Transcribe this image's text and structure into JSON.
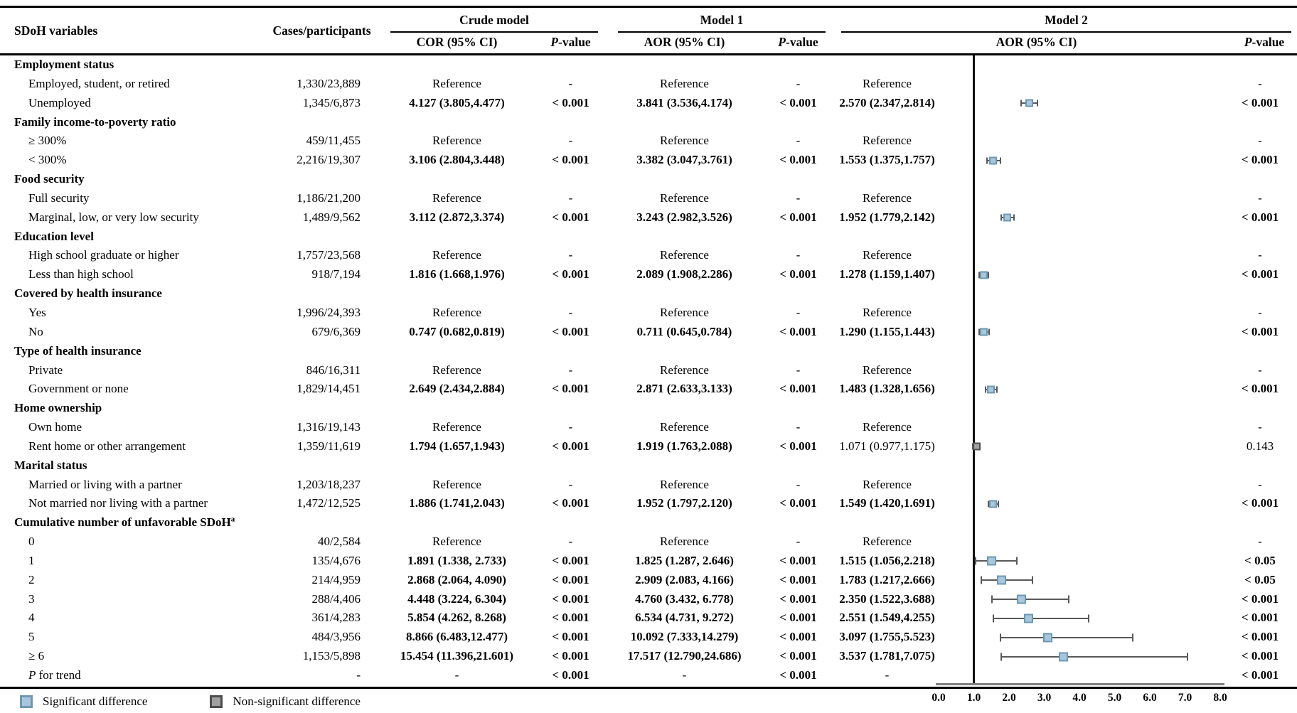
{
  "table": {
    "header": {
      "sdoh_col": "SDoH variables",
      "cases_col": "Cases/participants",
      "crude_model": "Crude model",
      "model1": "Model 1",
      "model2": "Model 2",
      "cor_ci": "COR (95% CI)",
      "aor1_ci": "AOR (95% CI)",
      "aor2_ci": "AOR (95% CI)",
      "p_italic": "P",
      "p_rest": "-value"
    },
    "rows": [
      {
        "t": "g",
        "label": "Employment status"
      },
      {
        "t": "d",
        "label": "Employed, student, or retired",
        "cases": "1,330/23,889",
        "cor": "Reference",
        "corp": "-",
        "aor1": "Reference",
        "aor1p": "-",
        "aor2": "Reference",
        "aor2p": "-"
      },
      {
        "t": "d",
        "label": "Unemployed",
        "cases": "1,345/6,873",
        "cor": "4.127 (3.805,4.477)",
        "corp": "< 0.001",
        "aor1": "3.841 (3.536,4.174)",
        "aor1p": "< 0.001",
        "aor2": "2.570 (2.347,2.814)",
        "aor2p": "< 0.001",
        "est": 2.57,
        "lo": 2.347,
        "hi": 2.814
      },
      {
        "t": "g",
        "label": "Family income-to-poverty ratio"
      },
      {
        "t": "d",
        "label": "≥ 300%",
        "cases": "459/11,455",
        "cor": "Reference",
        "corp": "-",
        "aor1": "Reference",
        "aor1p": "-",
        "aor2": "Reference",
        "aor2p": "-"
      },
      {
        "t": "d",
        "label": "< 300%",
        "cases": "2,216/19,307",
        "cor": "3.106 (2.804,3.448)",
        "corp": "< 0.001",
        "aor1": "3.382 (3.047,3.761)",
        "aor1p": "< 0.001",
        "aor2": "1.553 (1.375,1.757)",
        "aor2p": "< 0.001",
        "est": 1.553,
        "lo": 1.375,
        "hi": 1.757
      },
      {
        "t": "g",
        "label": "Food security"
      },
      {
        "t": "d",
        "label": "Full security",
        "cases": "1,186/21,200",
        "cor": "Reference",
        "corp": "-",
        "aor1": "Reference",
        "aor1p": "-",
        "aor2": "Reference",
        "aor2p": "-"
      },
      {
        "t": "d",
        "label": "Marginal, low, or very low security",
        "cases": "1,489/9,562",
        "cor": "3.112 (2.872,3.374)",
        "corp": "< 0.001",
        "aor1": "3.243 (2.982,3.526)",
        "aor1p": "< 0.001",
        "aor2": "1.952 (1.779,2.142)",
        "aor2p": "< 0.001",
        "est": 1.952,
        "lo": 1.779,
        "hi": 2.142
      },
      {
        "t": "g",
        "label": "Education level"
      },
      {
        "t": "d",
        "label": "High school graduate or higher",
        "cases": "1,757/23,568",
        "cor": "Reference",
        "corp": "-",
        "aor1": "Reference",
        "aor1p": "-",
        "aor2": "Reference",
        "aor2p": "-"
      },
      {
        "t": "d",
        "label": "Less than high school",
        "cases": "918/7,194",
        "cor": "1.816 (1.668,1.976)",
        "corp": "< 0.001",
        "aor1": "2.089 (1.908,2.286)",
        "aor1p": "< 0.001",
        "aor2": "1.278 (1.159,1.407)",
        "aor2p": "< 0.001",
        "est": 1.278,
        "lo": 1.159,
        "hi": 1.407
      },
      {
        "t": "g",
        "label": "Covered by health insurance"
      },
      {
        "t": "d",
        "label": "Yes",
        "cases": "1,996/24,393",
        "cor": "Reference",
        "corp": "-",
        "aor1": "Reference",
        "aor1p": "-",
        "aor2": "Reference",
        "aor2p": "-"
      },
      {
        "t": "d",
        "label": "No",
        "cases": "679/6,369",
        "cor": "0.747 (0.682,0.819)",
        "corp": "< 0.001",
        "aor1": "0.711 (0.645,0.784)",
        "aor1p": "< 0.001",
        "aor2": "1.290 (1.155,1.443)",
        "aor2p": "< 0.001",
        "est": 1.29,
        "lo": 1.155,
        "hi": 1.443
      },
      {
        "t": "g",
        "label": "Type of health insurance"
      },
      {
        "t": "d",
        "label": "Private",
        "cases": "846/16,311",
        "cor": "Reference",
        "corp": "-",
        "aor1": "Reference",
        "aor1p": "-",
        "aor2": "Reference",
        "aor2p": "-"
      },
      {
        "t": "d",
        "label": "Government or none",
        "cases": "1,829/14,451",
        "cor": "2.649 (2.434,2.884)",
        "corp": "< 0.001",
        "aor1": "2.871 (2.633,3.133)",
        "aor1p": "< 0.001",
        "aor2": "1.483 (1.328,1.656)",
        "aor2p": "< 0.001",
        "est": 1.483,
        "lo": 1.328,
        "hi": 1.656
      },
      {
        "t": "g",
        "label": "Home ownership"
      },
      {
        "t": "d",
        "label": "Own home",
        "cases": "1,316/19,143",
        "cor": "Reference",
        "corp": "-",
        "aor1": "Reference",
        "aor1p": "-",
        "aor2": "Reference",
        "aor2p": "-"
      },
      {
        "t": "d",
        "label": "Rent home or other arrangement",
        "cases": "1,359/11,619",
        "cor": "1.794 (1.657,1.943)",
        "corp": "< 0.001",
        "aor1": "1.919 (1.763,2.088)",
        "aor1p": "< 0.001",
        "aor2": "1.071 (0.977,1.175)",
        "aor2p": "0.143",
        "est": 1.071,
        "lo": 0.977,
        "hi": 1.175,
        "ns": true
      },
      {
        "t": "g",
        "label": "Marital status"
      },
      {
        "t": "d",
        "label": "Married or living with a partner",
        "cases": "1,203/18,237",
        "cor": "Reference",
        "corp": "-",
        "aor1": "Reference",
        "aor1p": "-",
        "aor2": "Reference",
        "aor2p": "-"
      },
      {
        "t": "d",
        "label": "Not married nor living with a partner",
        "cases": "1,472/12,525",
        "cor": "1.886 (1.741,2.043)",
        "corp": "< 0.001",
        "aor1": "1.952 (1.797,2.120)",
        "aor1p": "< 0.001",
        "aor2": "1.549 (1.420,1.691)",
        "aor2p": "< 0.001",
        "est": 1.549,
        "lo": 1.42,
        "hi": 1.691
      },
      {
        "t": "g",
        "label": "Cumulative number of unfavorable SDoH",
        "label_sup": "a"
      },
      {
        "t": "d",
        "label": "0",
        "cases": "40/2,584",
        "cor": "Reference",
        "corp": "-",
        "aor1": "Reference",
        "aor1p": "-",
        "aor2": "Reference",
        "aor2p": "-"
      },
      {
        "t": "d",
        "label": "1",
        "cases": "135/4,676",
        "cor": "1.891 (1.338, 2.733)",
        "corp": "< 0.001",
        "aor1": "1.825 (1.287, 2.646)",
        "aor1p": "< 0.001",
        "aor2": "1.515 (1.056,2.218)",
        "aor2p": "< 0.05",
        "est": 1.515,
        "lo": 1.056,
        "hi": 2.218,
        "big": true
      },
      {
        "t": "d",
        "label": "2",
        "cases": "214/4,959",
        "cor": "2.868 (2.064, 4.090)",
        "corp": "< 0.001",
        "aor1": "2.909 (2.083, 4.166)",
        "aor1p": "< 0.001",
        "aor2": "1.783 (1.217,2.666)",
        "aor2p": "< 0.05",
        "est": 1.783,
        "lo": 1.217,
        "hi": 2.666,
        "big": true
      },
      {
        "t": "d",
        "label": "3",
        "cases": "288/4,406",
        "cor": "4.448 (3.224, 6.304)",
        "corp": "< 0.001",
        "aor1": "4.760 (3.432, 6.778)",
        "aor1p": "< 0.001",
        "aor2": "2.350 (1.522,3.688)",
        "aor2p": "< 0.001",
        "est": 2.35,
        "lo": 1.522,
        "hi": 3.688,
        "big": true
      },
      {
        "t": "d",
        "label": "4",
        "cases": "361/4,283",
        "cor": "5.854 (4.262, 8.268)",
        "corp": "< 0.001",
        "aor1": "6.534 (4.731, 9.272)",
        "aor1p": "< 0.001",
        "aor2": "2.551 (1.549,4.255)",
        "aor2p": "< 0.001",
        "est": 2.551,
        "lo": 1.549,
        "hi": 4.255,
        "big": true
      },
      {
        "t": "d",
        "label": "5",
        "cases": "484/3,956",
        "cor": "8.866 (6.483,12.477)",
        "corp": "< 0.001",
        "aor1": "10.092 (7.333,14.279)",
        "aor1p": "< 0.001",
        "aor2": "3.097 (1.755,5.523)",
        "aor2p": "< 0.001",
        "est": 3.097,
        "lo": 1.755,
        "hi": 5.523,
        "big": true
      },
      {
        "t": "d",
        "label": "≥ 6",
        "cases": "1,153/5,898",
        "cor": "15.454 (11.396,21.601)",
        "corp": "< 0.001",
        "aor1": "17.517 (12.790,24.686)",
        "aor1p": "< 0.001",
        "aor2": "3.537 (1.781,7.075)",
        "aor2p": "< 0.001",
        "est": 3.537,
        "lo": 1.781,
        "hi": 7.075,
        "big": true
      },
      {
        "t": "d",
        "label_it": "P",
        "label": " for trend",
        "cases": "-",
        "cor": "-",
        "corp": "< 0.001",
        "aor1": "-",
        "aor1p": "< 0.001",
        "aor2": "-",
        "aor2p": "< 0.001"
      }
    ]
  },
  "axis": {
    "ticks": [
      "0.0",
      "1.0",
      "2.0",
      "3.0",
      "4.0",
      "5.0",
      "6.0",
      "7.0",
      "8.0"
    ]
  },
  "legend": {
    "significant": "Significant difference",
    "nonsignificant": "Non-significant difference"
  },
  "colors": {
    "significant_fill": "#a9c7dc",
    "significant_border": "#6d98b3",
    "nonsignificant_fill": "#a0a0a0",
    "nonsignificant_border": "#4d4d4d",
    "whisker": "#595959",
    "axis_line": "#808080",
    "reference_line": "#111111"
  },
  "chart_data": {
    "type": "scatter",
    "subtype": "forest-plot",
    "title": "Model 2 AOR (95% CI)",
    "x_axis": {
      "min": 0,
      "max": 8,
      "ticks": [
        0.0,
        1.0,
        2.0,
        3.0,
        4.0,
        5.0,
        6.0,
        7.0,
        8.0
      ],
      "reference_line": 1.0
    },
    "points": [
      {
        "label": "Unemployed",
        "aor": 2.57,
        "ci_low": 2.347,
        "ci_high": 2.814,
        "significant": true
      },
      {
        "label": "< 300%",
        "aor": 1.553,
        "ci_low": 1.375,
        "ci_high": 1.757,
        "significant": true
      },
      {
        "label": "Marginal, low, or very low security",
        "aor": 1.952,
        "ci_low": 1.779,
        "ci_high": 2.142,
        "significant": true
      },
      {
        "label": "Less than high school",
        "aor": 1.278,
        "ci_low": 1.159,
        "ci_high": 1.407,
        "significant": true
      },
      {
        "label": "No",
        "aor": 1.29,
        "ci_low": 1.155,
        "ci_high": 1.443,
        "significant": true
      },
      {
        "label": "Government or none",
        "aor": 1.483,
        "ci_low": 1.328,
        "ci_high": 1.656,
        "significant": true
      },
      {
        "label": "Rent home or other arrangement",
        "aor": 1.071,
        "ci_low": 0.977,
        "ci_high": 1.175,
        "significant": false
      },
      {
        "label": "Not married nor living with a partner",
        "aor": 1.549,
        "ci_low": 1.42,
        "ci_high": 1.691,
        "significant": true
      },
      {
        "label": "1",
        "aor": 1.515,
        "ci_low": 1.056,
        "ci_high": 2.218,
        "significant": true
      },
      {
        "label": "2",
        "aor": 1.783,
        "ci_low": 1.217,
        "ci_high": 2.666,
        "significant": true
      },
      {
        "label": "3",
        "aor": 2.35,
        "ci_low": 1.522,
        "ci_high": 3.688,
        "significant": true
      },
      {
        "label": "4",
        "aor": 2.551,
        "ci_low": 1.549,
        "ci_high": 4.255,
        "significant": true
      },
      {
        "label": "5",
        "aor": 3.097,
        "ci_low": 1.755,
        "ci_high": 5.523,
        "significant": true
      },
      {
        "label": "≥ 6",
        "aor": 3.537,
        "ci_low": 1.781,
        "ci_high": 7.075,
        "significant": true
      }
    ]
  }
}
